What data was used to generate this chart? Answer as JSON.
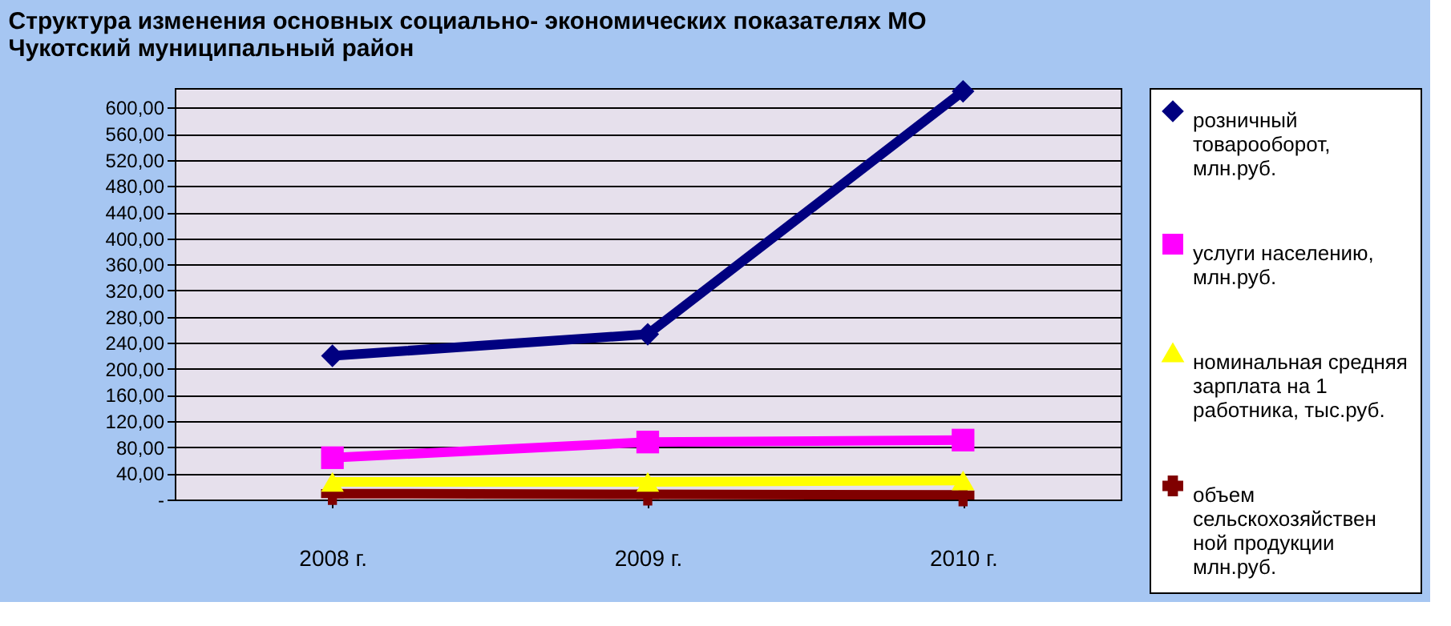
{
  "chart_data": {
    "type": "line",
    "title": "Структура изменения основных социально- экономических показателях МО\nЧукотский муниципальный район",
    "categories": [
      "2008 г.",
      "2009 г.",
      "2010 г."
    ],
    "series": [
      {
        "name": "розничный товарооборот, млн.руб.",
        "color": "#000080",
        "marker": "diamond",
        "values": [
          220,
          253,
          625
        ]
      },
      {
        "name": "услуги населению, млн.руб.",
        "color": "#ff00ff",
        "marker": "square",
        "values": [
          64,
          88,
          91
        ]
      },
      {
        "name": "номинальная средняя зарплата на 1 работника, тыс.руб.",
        "color": "#ffff00",
        "marker": "triangle",
        "values": [
          27,
          27,
          29
        ]
      },
      {
        "name": "объем сельскохозяйственной продукции млн.руб.",
        "color": "#800000",
        "marker": "cross",
        "values": [
          9,
          8,
          7
        ]
      }
    ],
    "ylim": [
      0,
      630
    ],
    "yticks": [
      {
        "value": 0,
        "label": "-"
      },
      {
        "value": 40,
        "label": "40,00"
      },
      {
        "value": 80,
        "label": "80,00"
      },
      {
        "value": 120,
        "label": "120,00"
      },
      {
        "value": 160,
        "label": "160,00"
      },
      {
        "value": 200,
        "label": "200,00"
      },
      {
        "value": 240,
        "label": "240,00"
      },
      {
        "value": 280,
        "label": "280,00"
      },
      {
        "value": 320,
        "label": "320,00"
      },
      {
        "value": 360,
        "label": "360,00"
      },
      {
        "value": 400,
        "label": "400,00"
      },
      {
        "value": 440,
        "label": "440,00"
      },
      {
        "value": 480,
        "label": "480,00"
      },
      {
        "value": 520,
        "label": "520,00"
      },
      {
        "value": 560,
        "label": "560,00"
      },
      {
        "value": 600,
        "label": "600,00"
      }
    ],
    "grid": "y",
    "legend": "right",
    "line_style": "solid"
  }
}
